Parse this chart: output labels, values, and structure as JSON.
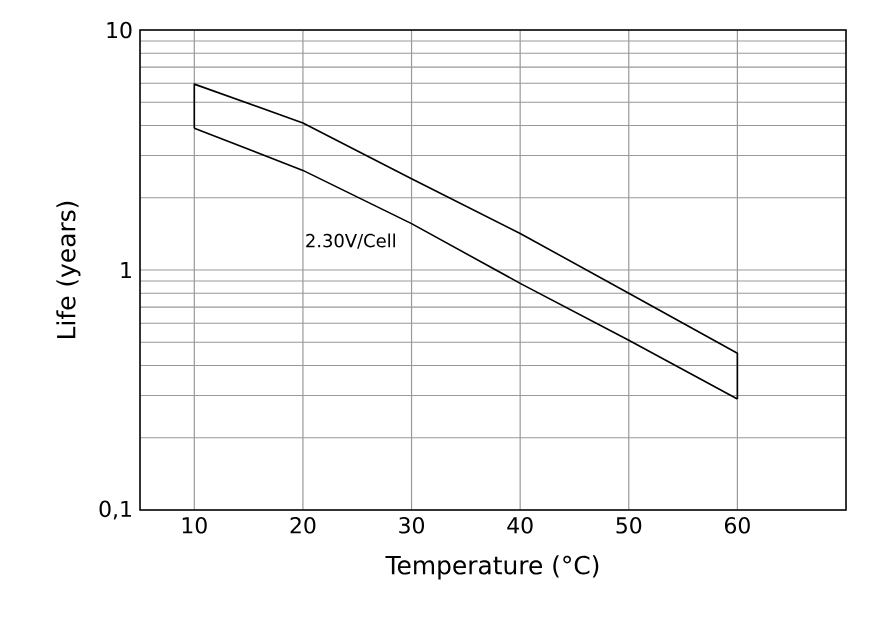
{
  "chart_data": {
    "type": "line",
    "xlabel": "Temperature (°C)",
    "ylabel": "Life (years)",
    "series": [
      {
        "color": "#000000",
        "x": [
          10,
          10,
          20,
          30,
          40,
          50,
          60,
          60
        ],
        "values": [
          3.9,
          5.95,
          4.1,
          2.4,
          1.42,
          0.8,
          0.45,
          0.29
        ]
      },
      {
        "color": "#000000",
        "x": [
          10,
          20,
          30,
          40,
          50,
          60
        ],
        "values": [
          3.9,
          2.6,
          1.56,
          0.88,
          0.51,
          0.29
        ]
      }
    ],
    "xlim": [
      5,
      70
    ],
    "xticks": [
      10,
      20,
      30,
      40,
      50,
      60
    ],
    "ylim": [
      0.1,
      10
    ],
    "yticks": [
      {
        "value": 0.1,
        "label": "0,1"
      },
      1,
      10
    ],
    "log": "y",
    "grid": true,
    "annotations": [
      "2.30V/Cell"
    ]
  }
}
